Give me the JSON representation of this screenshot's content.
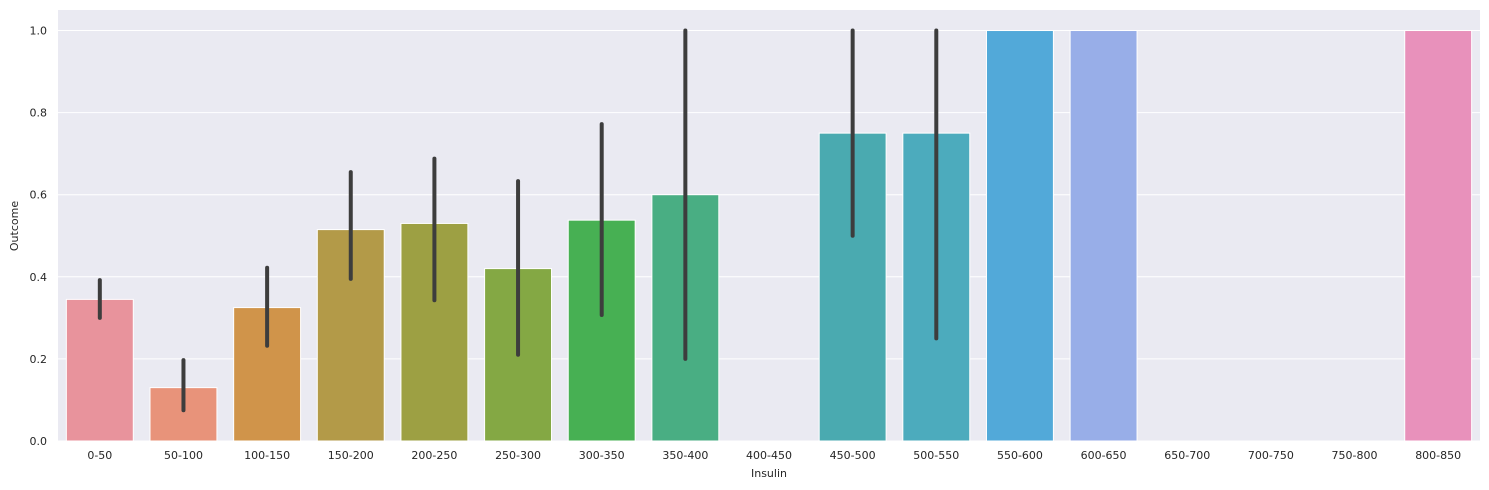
{
  "chart_data": {
    "type": "bar",
    "title": "",
    "xlabel": "Insulin",
    "ylabel": "Outcome",
    "ylim": [
      0,
      1.05
    ],
    "yticks": [
      0.0,
      0.2,
      0.4,
      0.6,
      0.8,
      1.0
    ],
    "ytick_labels": [
      "0.0",
      "0.2",
      "0.4",
      "0.6",
      "0.8",
      "1.0"
    ],
    "grid": true,
    "categories": [
      "0-50",
      "50-100",
      "100-150",
      "150-200",
      "200-250",
      "250-300",
      "300-350",
      "350-400",
      "400-450",
      "450-500",
      "500-550",
      "550-600",
      "600-650",
      "650-700",
      "700-750",
      "750-800",
      "800-850"
    ],
    "values": [
      0.345,
      0.13,
      0.325,
      0.515,
      0.53,
      0.42,
      0.538,
      0.6,
      null,
      0.75,
      0.75,
      1.0,
      1.0,
      null,
      null,
      null,
      1.0
    ],
    "error_low": [
      0.3,
      0.075,
      0.232,
      0.395,
      0.343,
      0.21,
      0.307,
      0.2,
      null,
      0.5,
      0.25,
      null,
      null,
      null,
      null,
      null,
      null
    ],
    "error_high": [
      0.392,
      0.197,
      0.422,
      0.655,
      0.688,
      0.633,
      0.772,
      1.0,
      null,
      1.0,
      1.0,
      null,
      null,
      null,
      null,
      null,
      null
    ],
    "colors": [
      "#e8939c",
      "#e8937a",
      "#d0944a",
      "#b39a48",
      "#9da043",
      "#84a844",
      "#47b053",
      "#49ae83",
      "#4aab9e",
      "#4aaab0",
      "#4cabbd",
      "#52a9d9",
      "#98aee8",
      "#b49ee8",
      "#d48fe0",
      "#e68fd1",
      "#e891bb"
    ],
    "plot_background": "#eaeaf2",
    "grid_color": "#ffffff",
    "errorbar_color": "#3d3d3d"
  }
}
